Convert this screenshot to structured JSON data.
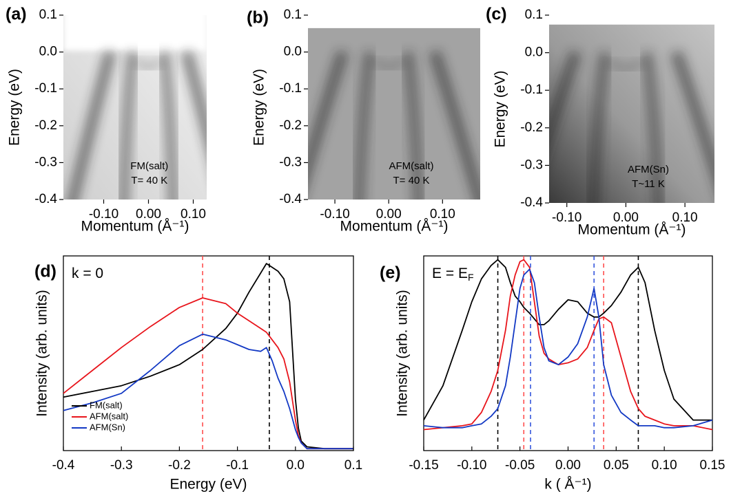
{
  "chart_data": [
    {
      "type": "image",
      "panel": "(a)",
      "xlabel": "Momentum (Å⁻¹)",
      "ylabel": "Energy (eV)",
      "annotations": [
        "FM(salt)",
        "T= 40 K"
      ],
      "xlim": [
        -0.19,
        0.13
      ],
      "ylim": [
        -0.4,
        0.1
      ],
      "xticks": [
        {
          "value": -0.1,
          "label": "-0.10"
        },
        {
          "value": 0,
          "label": "0.00"
        },
        {
          "value": 0.1,
          "label": "0.10"
        }
      ],
      "yticks": [
        0.1,
        {
          "value": 0,
          "label": "0.0"
        },
        -0.1,
        -0.2,
        -0.3,
        -0.4
      ]
    },
    {
      "type": "image",
      "panel": "(b)",
      "xlabel": "Momentum (Å⁻¹)",
      "ylabel": "Energy (eV)",
      "annotations": [
        "AFM(salt)",
        "T= 40 K"
      ],
      "xlim": [
        -0.15,
        0.17
      ],
      "ylim": [
        -0.4,
        0.1
      ],
      "xticks": [
        {
          "value": -0.1,
          "label": "-0.10"
        },
        {
          "value": 0,
          "label": "0.00"
        },
        {
          "value": 0.1,
          "label": "0.10"
        }
      ],
      "yticks": [
        0.1,
        {
          "value": 0,
          "label": "0.0"
        },
        -0.1,
        -0.2,
        -0.3,
        -0.4
      ]
    },
    {
      "type": "image",
      "panel": "(c)",
      "xlabel": "Momentum (Å⁻¹)",
      "ylabel": "Energy (eV)",
      "annotations": [
        "AFM(Sn)",
        "T~11 K"
      ],
      "xlim": [
        -0.13,
        0.15
      ],
      "ylim": [
        -0.4,
        0.1
      ],
      "xticks": [
        {
          "value": -0.1,
          "label": "-0.10"
        },
        {
          "value": 0,
          "label": "0.00"
        },
        {
          "value": 0.1,
          "label": "0.10"
        }
      ],
      "yticks": [
        0.1,
        {
          "value": 0,
          "label": "0.0"
        },
        -0.1,
        -0.2,
        -0.3,
        -0.4
      ]
    },
    {
      "type": "line",
      "panel": "(d)",
      "annotation": "k = 0",
      "xlabel": "Energy (eV)",
      "ylabel": "Intensity (arb. units)",
      "xlim": [
        -0.4,
        0.1
      ],
      "ylim": [
        0,
        1.02
      ],
      "xticks": [
        -0.4,
        -0.3,
        -0.2,
        -0.1,
        {
          "value": 0,
          "label": "0.0"
        },
        0.1
      ],
      "x": [
        -0.4,
        -0.35,
        -0.3,
        -0.25,
        -0.2,
        -0.16,
        -0.12,
        -0.1,
        -0.08,
        -0.06,
        -0.05,
        -0.04,
        -0.03,
        -0.02,
        -0.01,
        0,
        0.005,
        0.01,
        0.02,
        0.05,
        0.1
      ],
      "series": [
        {
          "name": "FM(salt)",
          "color": "#000000",
          "values": [
            0.28,
            0.31,
            0.34,
            0.39,
            0.45,
            0.53,
            0.64,
            0.72,
            0.83,
            0.93,
            0.98,
            0.96,
            0.94,
            0.9,
            0.78,
            0.27,
            0.12,
            0.05,
            0.02,
            0.01,
            0.01
          ]
        },
        {
          "name": "AFM(salt)",
          "color": "#e8141b",
          "values": [
            0.3,
            0.42,
            0.54,
            0.65,
            0.75,
            0.8,
            0.77,
            0.72,
            0.68,
            0.64,
            0.62,
            0.58,
            0.54,
            0.48,
            0.36,
            0.16,
            0.08,
            0.04,
            0.01,
            0.01,
            0.01
          ]
        },
        {
          "name": "AFM(Sn)",
          "color": "#1238c4",
          "values": [
            0.21,
            0.25,
            0.3,
            0.42,
            0.55,
            0.61,
            0.58,
            0.555,
            0.53,
            0.52,
            0.54,
            0.47,
            0.38,
            0.31,
            0.22,
            0.11,
            0.07,
            0.04,
            0.01,
            0.01,
            0.01
          ]
        }
      ],
      "vlines": [
        {
          "value": -0.16,
          "color": "#ff4d4d"
        },
        {
          "value": -0.045,
          "color": "#000000"
        }
      ],
      "legend": "lower left"
    },
    {
      "type": "line",
      "panel": "(e)",
      "annotation": "E = E",
      "annotation_sub": "F",
      "xlabel": "k ( Å⁻¹)",
      "ylabel": "Intensity (arb. units)",
      "xlim": [
        -0.15,
        0.15
      ],
      "ylim": [
        0,
        1.02
      ],
      "xticks": [
        -0.15,
        {
          "value": -0.1,
          "label": "-0.10"
        },
        -0.05,
        {
          "value": 0,
          "label": "0.00"
        },
        0.05,
        {
          "value": 0.1,
          "label": "0.10"
        },
        0.15
      ],
      "x": [
        -0.15,
        -0.13,
        -0.11,
        -0.1,
        -0.09,
        -0.08,
        -0.073,
        -0.065,
        -0.06,
        -0.055,
        -0.05,
        -0.046,
        -0.04,
        -0.035,
        -0.03,
        -0.025,
        -0.02,
        -0.01,
        0,
        0.01,
        0.02,
        0.027,
        0.032,
        0.037,
        0.045,
        0.055,
        0.065,
        0.073,
        0.08,
        0.09,
        0.1,
        0.11,
        0.13,
        0.15
      ],
      "series": [
        {
          "name": "FM(salt)",
          "color": "#000000",
          "values": [
            0.16,
            0.34,
            0.63,
            0.78,
            0.9,
            0.97,
            1.0,
            0.96,
            0.88,
            0.81,
            0.78,
            0.75,
            0.72,
            0.69,
            0.66,
            0.66,
            0.68,
            0.74,
            0.79,
            0.78,
            0.72,
            0.7,
            0.7,
            0.72,
            0.76,
            0.83,
            0.92,
            0.96,
            0.88,
            0.63,
            0.42,
            0.27,
            0.16,
            0.16
          ]
        },
        {
          "name": "AFM(salt)",
          "color": "#e8141b",
          "values": [
            0.11,
            0.12,
            0.13,
            0.14,
            0.2,
            0.31,
            0.42,
            0.63,
            0.81,
            0.92,
            0.99,
            1.0,
            0.96,
            0.78,
            0.6,
            0.51,
            0.48,
            0.45,
            0.46,
            0.48,
            0.54,
            0.63,
            0.69,
            0.7,
            0.67,
            0.49,
            0.31,
            0.22,
            0.18,
            0.16,
            0.14,
            0.13,
            0.13,
            0.11
          ]
        },
        {
          "name": "AFM(Sn)",
          "color": "#1238c4",
          "values": [
            0.13,
            0.12,
            0.12,
            0.13,
            0.14,
            0.18,
            0.22,
            0.34,
            0.49,
            0.67,
            0.85,
            0.92,
            0.95,
            0.88,
            0.7,
            0.54,
            0.47,
            0.45,
            0.49,
            0.56,
            0.7,
            0.85,
            0.7,
            0.45,
            0.29,
            0.2,
            0.16,
            0.13,
            0.13,
            0.13,
            0.12,
            0.12,
            0.13,
            0.16
          ]
        }
      ],
      "vlines": [
        {
          "value": -0.073,
          "color": "#000000"
        },
        {
          "value": 0.073,
          "color": "#000000"
        },
        {
          "value": -0.046,
          "color": "#ff4d4d"
        },
        {
          "value": 0.037,
          "color": "#ff4d4d"
        },
        {
          "value": -0.039,
          "color": "#3355dd"
        },
        {
          "value": 0.027,
          "color": "#3355dd"
        }
      ]
    }
  ]
}
